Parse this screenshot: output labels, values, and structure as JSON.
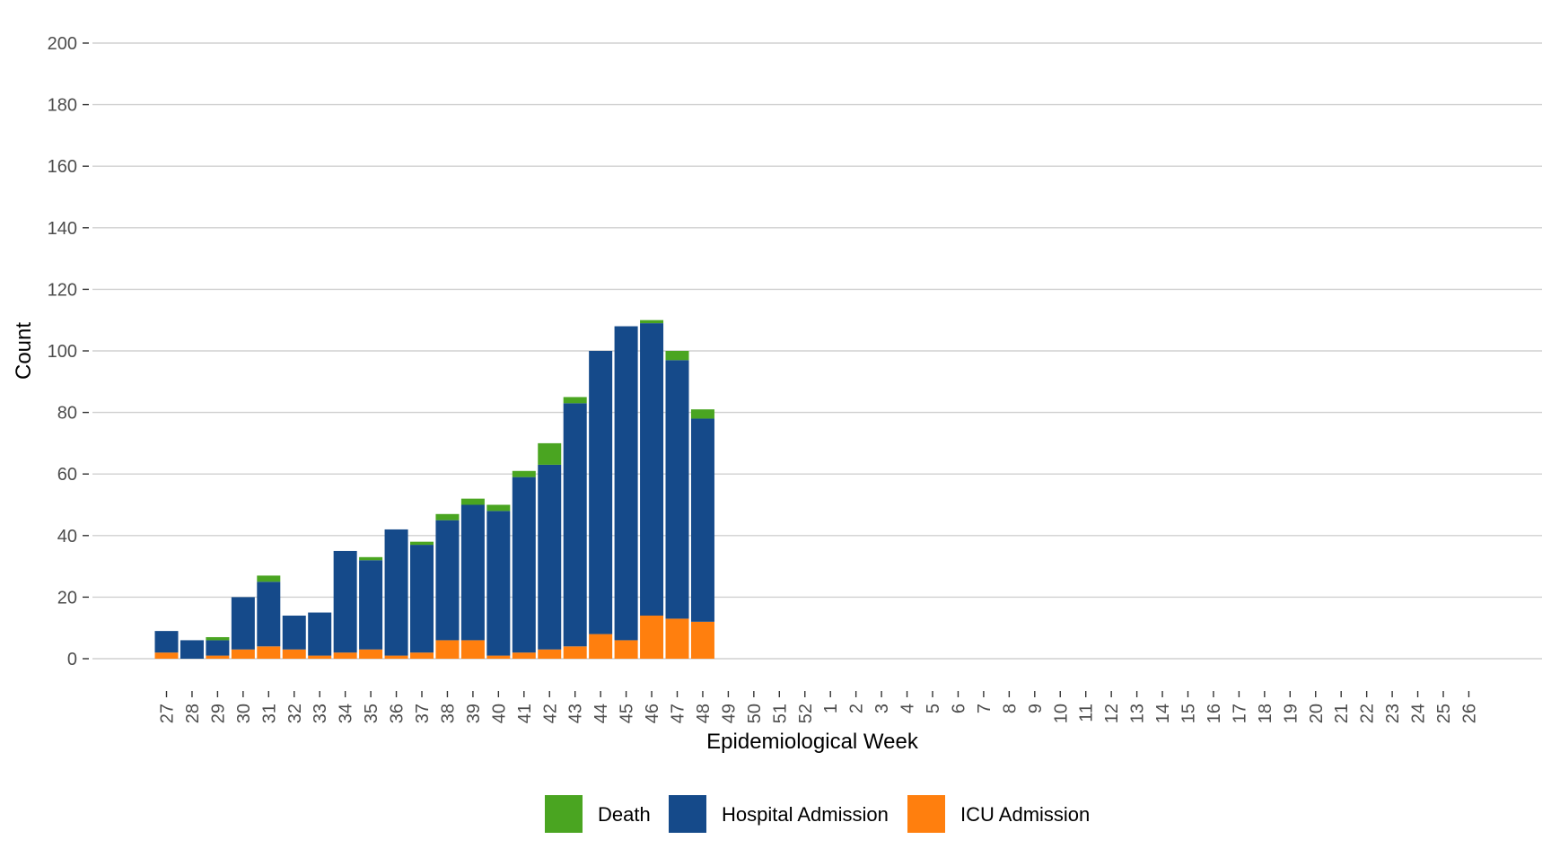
{
  "chart_data": {
    "type": "bar",
    "stacked": true,
    "xlabel": "Epidemiological Week",
    "ylabel": "Count",
    "ylim": [
      0,
      200
    ],
    "yticks": [
      "0",
      "20",
      "40",
      "60",
      "80",
      "100",
      "120",
      "140",
      "160",
      "180",
      "200"
    ],
    "grid": true,
    "legend_position": "bottom",
    "categories": [
      "27",
      "28",
      "29",
      "30",
      "31",
      "32",
      "33",
      "34",
      "35",
      "36",
      "37",
      "38",
      "39",
      "40",
      "41",
      "42",
      "43",
      "44",
      "45",
      "46",
      "47",
      "48",
      "49",
      "50",
      "51",
      "52",
      "1",
      "2",
      "3",
      "4",
      "5",
      "6",
      "7",
      "8",
      "9",
      "10",
      "11",
      "12",
      "13",
      "14",
      "15",
      "16",
      "17",
      "18",
      "19",
      "20",
      "21",
      "22",
      "23",
      "24",
      "25",
      "26"
    ],
    "series": [
      {
        "name": "ICU Admission",
        "color": "#ff7f0e",
        "values": [
          2,
          0,
          1,
          3,
          4,
          3,
          1,
          2,
          3,
          1,
          2,
          6,
          6,
          1,
          2,
          3,
          4,
          8,
          6,
          14,
          13,
          12,
          0,
          0,
          0,
          0,
          0,
          0,
          0,
          0,
          0,
          0,
          0,
          0,
          0,
          0,
          0,
          0,
          0,
          0,
          0,
          0,
          0,
          0,
          0,
          0,
          0,
          0,
          0,
          0,
          0,
          0
        ]
      },
      {
        "name": "Hospital Admission",
        "color": "#154a8a",
        "values": [
          7,
          6,
          5,
          17,
          21,
          11,
          14,
          33,
          29,
          41,
          35,
          39,
          44,
          47,
          57,
          60,
          79,
          92,
          102,
          95,
          84,
          66,
          0,
          0,
          0,
          0,
          0,
          0,
          0,
          0,
          0,
          0,
          0,
          0,
          0,
          0,
          0,
          0,
          0,
          0,
          0,
          0,
          0,
          0,
          0,
          0,
          0,
          0,
          0,
          0,
          0,
          0
        ]
      },
      {
        "name": "Death",
        "color": "#4aa521",
        "values": [
          0,
          0,
          1,
          0,
          2,
          0,
          0,
          0,
          1,
          0,
          1,
          2,
          2,
          2,
          2,
          7,
          2,
          0,
          0,
          1,
          3,
          3,
          0,
          0,
          0,
          0,
          0,
          0,
          0,
          0,
          0,
          0,
          0,
          0,
          0,
          0,
          0,
          0,
          0,
          0,
          0,
          0,
          0,
          0,
          0,
          0,
          0,
          0,
          0,
          0,
          0,
          0
        ]
      }
    ],
    "legend": [
      {
        "name": "Death",
        "color": "#4aa521"
      },
      {
        "name": "Hospital Admission",
        "color": "#154a8a"
      },
      {
        "name": "ICU Admission",
        "color": "#ff7f0e"
      }
    ]
  }
}
